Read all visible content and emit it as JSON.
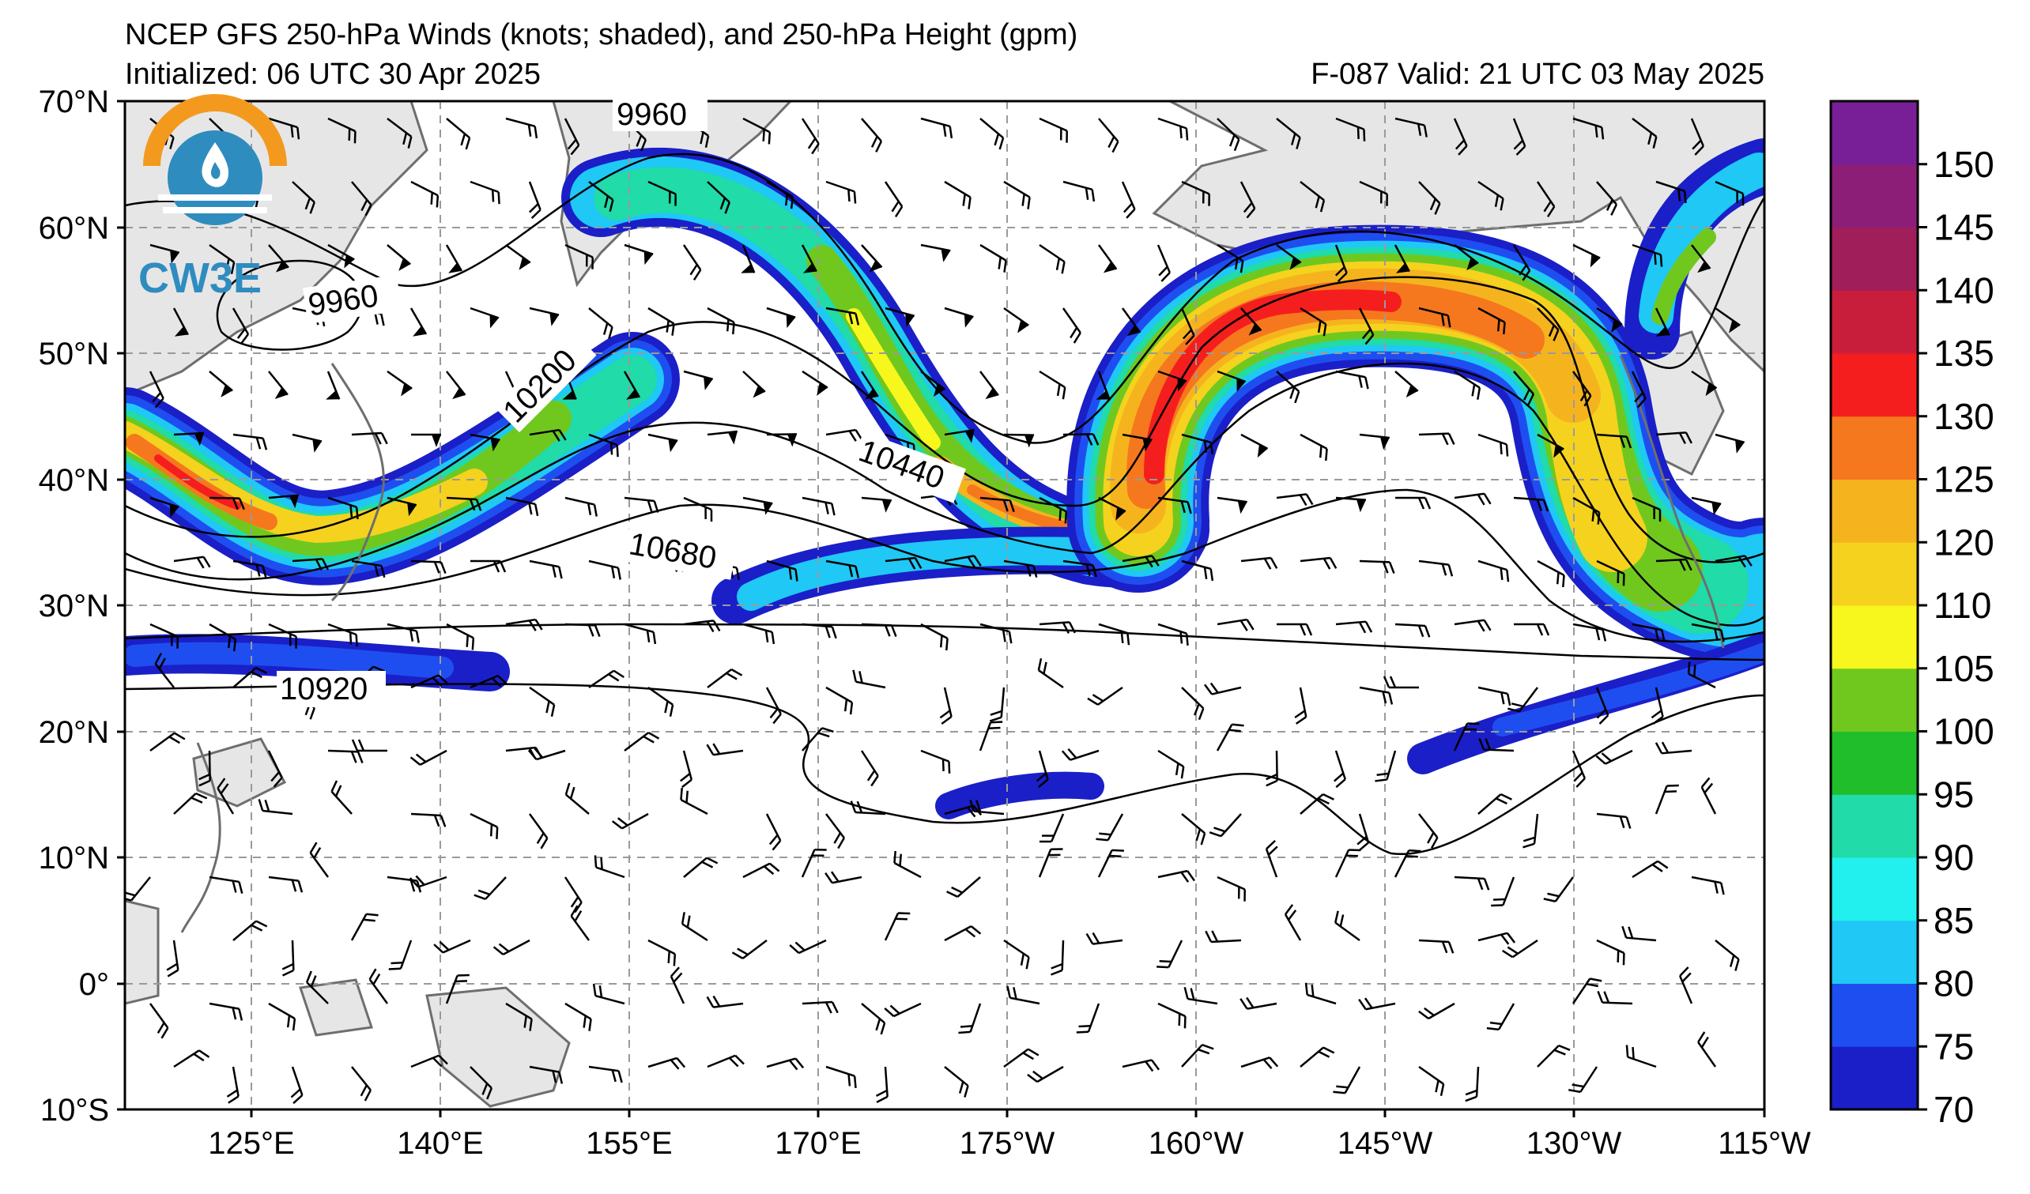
{
  "header": {
    "title": "NCEP GFS 250-hPa Winds (knots; shaded), and 250-hPa Height (gpm)",
    "initialized": "Initialized: 06 UTC 30 Apr 2025",
    "forecast_valid": "F-087  Valid: 21 UTC 03 May 2025"
  },
  "logo": {
    "text": "CW3E",
    "icon": "water-drop-sun-icon"
  },
  "map": {
    "lat_labels": [
      "70°N",
      "60°N",
      "50°N",
      "40°N",
      "30°N",
      "20°N",
      "10°N",
      "0°",
      "10°S"
    ],
    "lon_labels": [
      "125°E",
      "140°E",
      "155°E",
      "170°E",
      "175°W",
      "160°W",
      "145°W",
      "130°W",
      "115°W"
    ],
    "contour_labels": [
      "9960",
      "9960",
      "10200",
      "10440",
      "10680",
      "10920"
    ],
    "land_color": "#e6e6e6",
    "coast_color": "#6e6e6e",
    "grid_style": "dashed gray"
  },
  "colorbar": {
    "labels": [
      "70",
      "75",
      "80",
      "85",
      "90",
      "95",
      "100",
      "105",
      "110",
      "120",
      "125",
      "130",
      "135",
      "140",
      "145",
      "150"
    ],
    "colors": [
      "#1b1fc8",
      "#1f4ef0",
      "#1fc8f5",
      "#21f0ee",
      "#21dba8",
      "#1fbe2a",
      "#70c81e",
      "#f7f71e",
      "#f5d21e",
      "#f5b41e",
      "#f5781e",
      "#f51e1e",
      "#c81e3c",
      "#a01e5a",
      "#8c1e78",
      "#781e96"
    ]
  }
}
